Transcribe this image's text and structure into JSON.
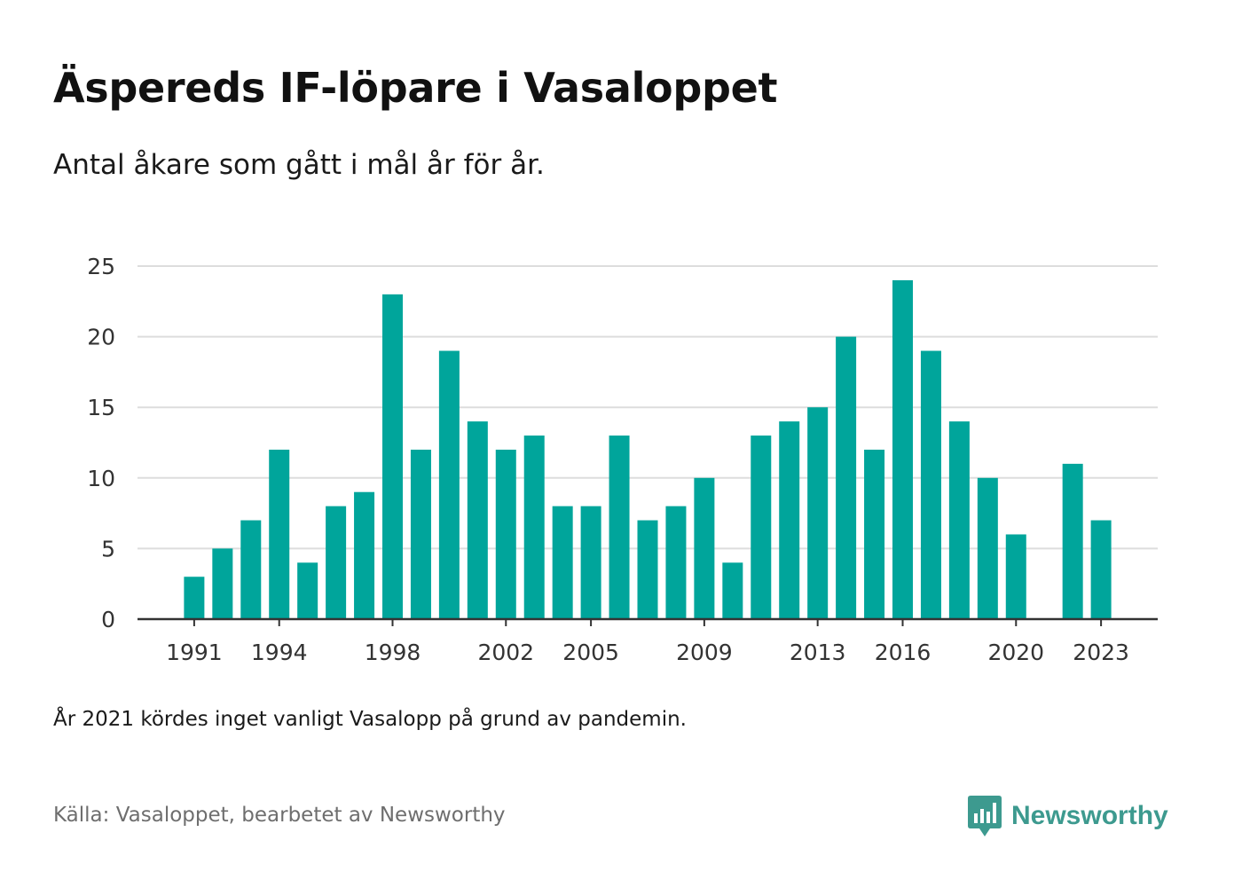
{
  "header": {
    "title": "Äspereds IF-löpare i Vasaloppet",
    "subtitle": "Antal åkare som gått i mål år för år."
  },
  "footer": {
    "note": "År 2021 kördes inget vanligt Vasalopp på grund av pandemin.",
    "source": "Källa: Vasaloppet, bearbetet av Newsworthy",
    "brand": "Newsworthy"
  },
  "colors": {
    "bar": "#00a59b",
    "grid": "#dddddd",
    "axis": "#333333",
    "brand": "#3d9a8f"
  },
  "chart_data": {
    "type": "bar",
    "x": [
      1991,
      1992,
      1993,
      1994,
      1995,
      1996,
      1997,
      1998,
      1999,
      2000,
      2001,
      2002,
      2003,
      2004,
      2005,
      2006,
      2007,
      2008,
      2009,
      2010,
      2011,
      2012,
      2013,
      2014,
      2015,
      2016,
      2017,
      2018,
      2019,
      2020,
      2021,
      2022,
      2023
    ],
    "values": [
      3,
      5,
      7,
      12,
      4,
      8,
      9,
      23,
      12,
      19,
      14,
      12,
      13,
      8,
      8,
      13,
      7,
      8,
      10,
      4,
      13,
      14,
      15,
      20,
      12,
      24,
      19,
      14,
      10,
      6,
      null,
      11,
      7
    ],
    "x_tick_labels": [
      "1991",
      "1994",
      "1998",
      "2002",
      "2005",
      "2009",
      "2013",
      "2016",
      "2020",
      "2023"
    ],
    "y_ticks": [
      0,
      5,
      10,
      15,
      20,
      25
    ],
    "ylim": [
      0,
      25
    ],
    "xlim": [
      1989,
      2025
    ],
    "grid": true,
    "legend": "none"
  }
}
